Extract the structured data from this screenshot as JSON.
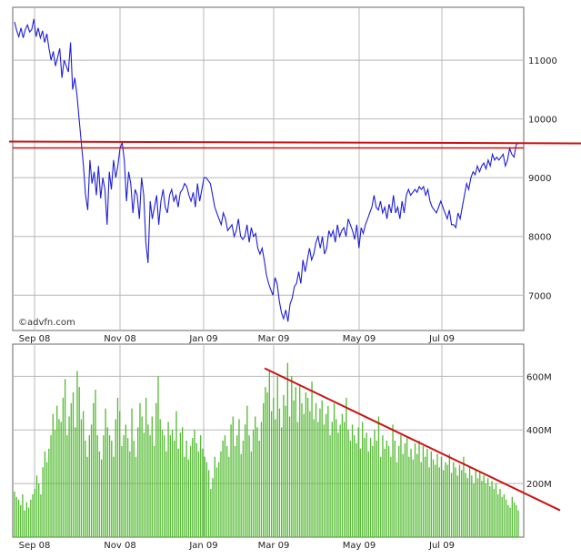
{
  "chart_data": [
    {
      "type": "line",
      "name": "price",
      "watermark": "©advfn.com",
      "colors": {
        "line": "#1f1fd6",
        "trendline": "#cc1111",
        "grid": "#b8b8b8",
        "frame": "#666666"
      },
      "x_tick_labels": [
        "Sep 08",
        "Nov 08",
        "Jan 09",
        "Mar 09",
        "May 09",
        "Jul 09"
      ],
      "y_tick_labels": [
        "11000",
        "10000",
        "9000",
        "8000",
        "7000"
      ],
      "ylim": [
        6400,
        11900
      ],
      "grid": true,
      "series": [
        {
          "values": [
            11650,
            11500,
            11400,
            11550,
            11380,
            11520,
            11600,
            11480,
            11520,
            11700,
            11400,
            11550,
            11380,
            11500,
            11300,
            11450,
            11200,
            11000,
            11150,
            10900,
            11050,
            11200,
            10700,
            11000,
            10900,
            10800,
            11300,
            10500,
            10700,
            10400,
            10000,
            9600,
            9200,
            8700,
            8450,
            9300,
            8900,
            9100,
            8700,
            9200,
            8650,
            9000,
            8800,
            8200,
            9100,
            8800,
            9300,
            9000,
            9200,
            9500,
            9600,
            9300,
            8600,
            9100,
            8900,
            8400,
            8800,
            8700,
            8300,
            9000,
            8700,
            7900,
            7550,
            8600,
            8300,
            8500,
            8700,
            8200,
            8600,
            8800,
            8500,
            8400,
            8700,
            8800,
            8600,
            8700,
            8500,
            8750,
            8800,
            8900,
            8850,
            8700,
            8600,
            8750,
            8500,
            8900,
            8600,
            8800,
            9000,
            9000,
            8950,
            8900,
            8700,
            8500,
            8400,
            8300,
            8200,
            8400,
            8300,
            8100,
            8150,
            8200,
            8000,
            8100,
            8300,
            8000,
            7950,
            8000,
            8200,
            7900,
            8150,
            8000,
            8050,
            7800,
            7700,
            7800,
            7600,
            7350,
            7200,
            7100,
            7000,
            7300,
            7200,
            6900,
            6700,
            6600,
            6750,
            6550,
            6850,
            6950,
            7150,
            7200,
            7400,
            7200,
            7600,
            7400,
            7600,
            7800,
            7600,
            7700,
            7900,
            8000,
            7800,
            8000,
            7700,
            7800,
            8100,
            8000,
            8100,
            7900,
            8200,
            8000,
            8100,
            8150,
            8000,
            8300,
            8200,
            8100,
            7950,
            8200,
            7800,
            8150,
            8050,
            8200,
            8300,
            8400,
            8500,
            8700,
            8500,
            8450,
            8600,
            8400,
            8500,
            8300,
            8550,
            8400,
            8700,
            8400,
            8500,
            8300,
            8600,
            8400,
            8700,
            8800,
            8700,
            8750,
            8800,
            8750,
            8850,
            8800,
            8850,
            8700,
            8800,
            8600,
            8500,
            8450,
            8400,
            8500,
            8600,
            8500,
            8400,
            8300,
            8450,
            8200,
            8200,
            8150,
            8400,
            8300,
            8500,
            8700,
            8900,
            8800,
            9000,
            9100,
            9050,
            9200,
            9100,
            9200,
            9250,
            9150,
            9300,
            9200,
            9400,
            9300,
            9350,
            9300,
            9350,
            9400,
            9200,
            9300,
            9500,
            9400,
            9350,
            9550,
            9600
          ]
        }
      ],
      "trendline_level": 9600
    },
    {
      "type": "bar",
      "name": "volume",
      "colors": {
        "bar": "#55bb33",
        "trendline": "#cc1111",
        "grid": "#b8b8b8"
      },
      "x_tick_labels": [
        "Sep 08",
        "Nov 08",
        "Jan 09",
        "Mar 09",
        "May 09",
        "Jul 09"
      ],
      "y_tick_labels": [
        "600M",
        "400M",
        "200M"
      ],
      "ylim": [
        0,
        720
      ],
      "grid": true,
      "series": [
        {
          "values": [
            170,
            150,
            140,
            120,
            160,
            100,
            130,
            110,
            140,
            160,
            180,
            230,
            200,
            160,
            260,
            320,
            280,
            330,
            380,
            460,
            400,
            490,
            440,
            430,
            520,
            590,
            380,
            450,
            500,
            540,
            410,
            620,
            560,
            440,
            470,
            360,
            300,
            380,
            420,
            500,
            550,
            380,
            320,
            290,
            380,
            480,
            410,
            380,
            360,
            300,
            440,
            520,
            470,
            340,
            380,
            420,
            370,
            320,
            480,
            360,
            300,
            410,
            500,
            450,
            390,
            520,
            420,
            380,
            450,
            340,
            500,
            600,
            440,
            400,
            380,
            320,
            430,
            380,
            400,
            360,
            470,
            330,
            390,
            410,
            300,
            360,
            290,
            340,
            370,
            400,
            350,
            320,
            380,
            330,
            300,
            280,
            250,
            180,
            220,
            300,
            260,
            280,
            320,
            360,
            380,
            340,
            300,
            420,
            450,
            340,
            380,
            440,
            310,
            360,
            420,
            490,
            380,
            320,
            400,
            450,
            410,
            360,
            430,
            500,
            560,
            540,
            620,
            470,
            520,
            440,
            600,
            480,
            410,
            530,
            490,
            650,
            450,
            600,
            510,
            560,
            430,
            570,
            500,
            460,
            540,
            520,
            470,
            580,
            440,
            500,
            430,
            480,
            510,
            420,
            460,
            490,
            380,
            430,
            500,
            440,
            390,
            420,
            460,
            430,
            520,
            400,
            360,
            420,
            380,
            350,
            410,
            330,
            430,
            370,
            390,
            320,
            370,
            340,
            400,
            360,
            450,
            300,
            380,
            330,
            360,
            340,
            300,
            420,
            360,
            280,
            340,
            380,
            310,
            350,
            370,
            300,
            330,
            290,
            350,
            310,
            360,
            280,
            340,
            300,
            330,
            260,
            320,
            290,
            270,
            310,
            260,
            300,
            250,
            280,
            270,
            310,
            240,
            280,
            260,
            230,
            270,
            250,
            300,
            240,
            220,
            260,
            230,
            200,
            250,
            220,
            240,
            210,
            230,
            200,
            220,
            190,
            210,
            180,
            200,
            160,
            180,
            150,
            160,
            140,
            120,
            110,
            150,
            130,
            120,
            100
          ]
        }
      ],
      "trendline_values": [
        630,
        100
      ]
    }
  ]
}
